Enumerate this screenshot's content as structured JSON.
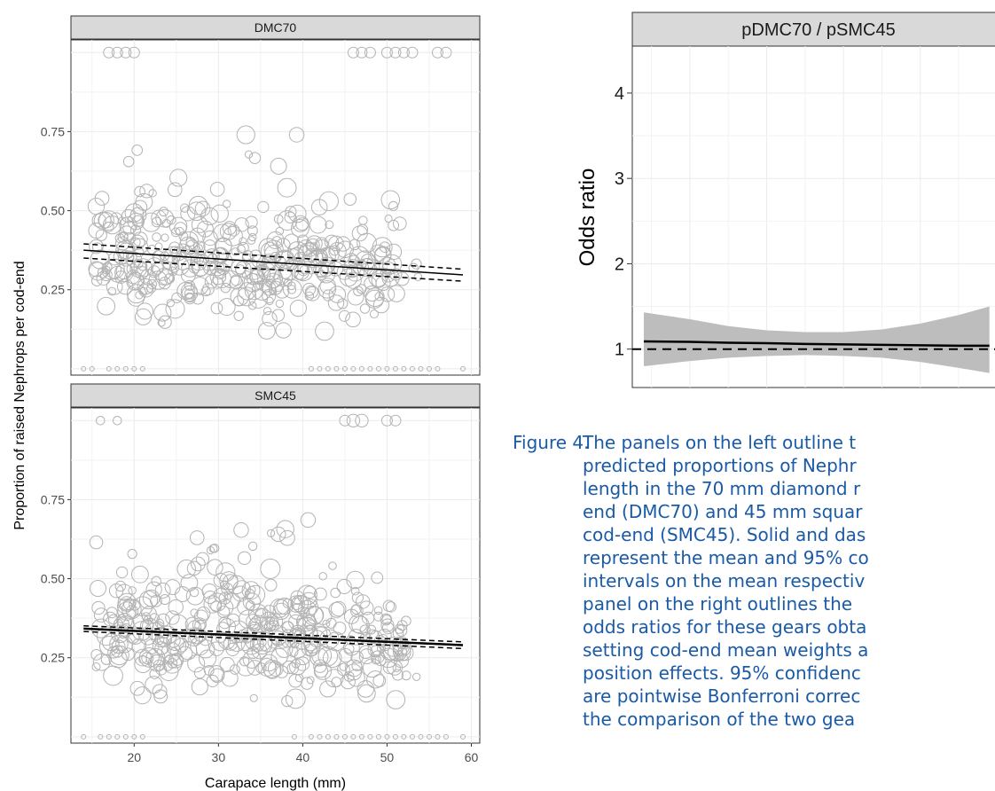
{
  "chart_data": [
    {
      "type": "scatter",
      "panel": "DMC70",
      "xlim": [
        12.5,
        61
      ],
      "ylim": [
        -0.02,
        1.04
      ],
      "x_ticks": [
        20,
        30,
        40,
        50,
        60
      ],
      "y_ticks": [
        0.25,
        0.5,
        0.75
      ],
      "y_tick_labels": [
        "0.25",
        "0.50",
        "0.75"
      ],
      "points": [],
      "zero_points_x": [
        14,
        15,
        17,
        18,
        19,
        20,
        21,
        41,
        42,
        43,
        44,
        45,
        46,
        47,
        48,
        49,
        50,
        51,
        52,
        53,
        54,
        55,
        56,
        59
      ],
      "one_points_x": [
        17,
        18,
        19,
        20,
        46,
        47,
        48,
        50,
        51,
        52,
        53,
        56,
        57
      ],
      "one_points_size": [
        1,
        1,
        1,
        1,
        1,
        1,
        1,
        1,
        1,
        1,
        1,
        1,
        1
      ],
      "fit_mean": [
        [
          14,
          0.375
        ],
        [
          59,
          0.297
        ]
      ],
      "fit_lower": [
        [
          14,
          0.35
        ],
        [
          59,
          0.277
        ]
      ],
      "fit_upper": [
        [
          14,
          0.395
        ],
        [
          59,
          0.315
        ]
      ]
    },
    {
      "type": "scatter",
      "panel": "SMC45",
      "xlim": [
        12.5,
        61
      ],
      "ylim": [
        -0.02,
        1.04
      ],
      "x_ticks": [
        20,
        30,
        40,
        50,
        60
      ],
      "x_tick_labels": [
        "20",
        "30",
        "40",
        "50",
        "60"
      ],
      "y_ticks": [
        0.25,
        0.5,
        0.75
      ],
      "y_tick_labels": [
        "0.25",
        "0.50",
        "0.75"
      ],
      "xlabel": "Carapace length (mm)",
      "points": [],
      "zero_points_x": [
        14,
        16,
        17,
        18,
        19,
        20,
        21,
        39,
        41,
        42,
        43,
        44,
        45,
        46,
        47,
        48,
        49,
        50,
        51,
        52,
        53,
        54,
        55,
        56,
        57,
        59
      ],
      "one_points_x": [
        16,
        18,
        45,
        46,
        47,
        50,
        51
      ],
      "one_points_size": [
        0.8,
        0.8,
        1,
        1.2,
        1.2,
        1,
        1
      ],
      "fit_mean": [
        [
          14,
          0.342
        ],
        [
          59,
          0.29
        ]
      ],
      "fit_lower": [
        [
          14,
          0.333
        ],
        [
          59,
          0.279
        ]
      ],
      "fit_upper": [
        [
          14,
          0.351
        ],
        [
          59,
          0.3
        ]
      ]
    },
    {
      "type": "line",
      "panel": "pDMC70 / pSMC45",
      "ylabel": "Odds ratio",
      "xlim": [
        12.5,
        61
      ],
      "ylim": [
        0.55,
        4.55
      ],
      "y_ticks": [
        1,
        2,
        3,
        4
      ],
      "y_tick_labels": [
        "1",
        "2",
        "3",
        "4"
      ],
      "x": [
        14,
        20,
        25,
        30,
        35,
        40,
        45,
        50,
        55,
        59
      ],
      "mean": [
        1.09,
        1.085,
        1.075,
        1.07,
        1.06,
        1.055,
        1.05,
        1.045,
        1.04,
        1.04
      ],
      "lower": [
        0.8,
        0.86,
        0.9,
        0.92,
        0.93,
        0.92,
        0.9,
        0.85,
        0.78,
        0.72
      ],
      "upper": [
        1.43,
        1.35,
        1.27,
        1.22,
        1.2,
        1.2,
        1.23,
        1.3,
        1.4,
        1.5
      ],
      "reference": 1
    }
  ],
  "axis": {
    "shared_ylabel": "Proportion of raised Nephrops per cod-end"
  },
  "caption": {
    "label": "Figure 4.",
    "lines": [
      "The panels on the left outline t",
      "predicted proportions of Nephr",
      "length in the 70 mm diamond r",
      "end (DMC70) and 45 mm squar",
      "cod-end (SMC45). Solid and das",
      "represent the mean and 95% co",
      "intervals on the mean respectiv",
      "panel on the right outlines the",
      "odds ratios for these gears obta",
      "setting cod-end mean weights a",
      "position effects. 95% confidenc",
      "are pointwise Bonferroni correc",
      "the comparison of the two gea"
    ]
  }
}
